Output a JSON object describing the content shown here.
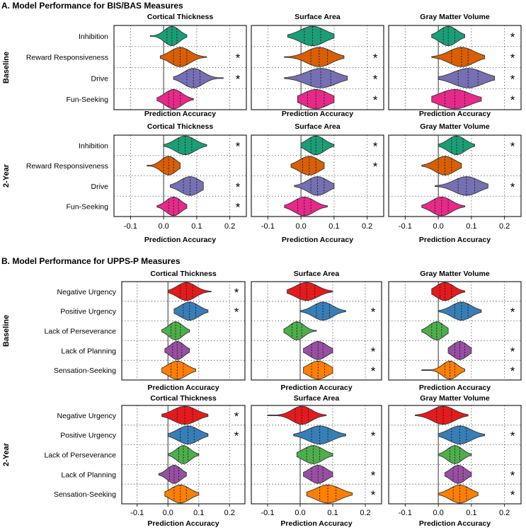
{
  "figure": {
    "section_a_title": "A. Model Performance for BIS/BAS Measures",
    "section_b_title": "B. Model Performance for UPPS-P Measures",
    "panel_titles": [
      "Cortical Thickness",
      "Surface Area",
      "Gray Matter Volume"
    ],
    "row_group_labels": [
      "Baseline",
      "2-Year"
    ],
    "x_axis_label": "Prediction Accuracy",
    "x_ticks": [
      "-0.1",
      "0.0",
      "0.1",
      "0.2"
    ],
    "significance_marker": "*",
    "bisbas_measures": [
      "Inhibition",
      "Reward Responsiveness",
      "Drive",
      "Fun-Seeking"
    ],
    "uppsp_measures": [
      "Negative Urgency",
      "Positive Urgency",
      "Lack of Perseverance",
      "Lack of Planning",
      "Sensation-Seeking"
    ]
  },
  "colors": {
    "Inhibition": "#1b9e77",
    "Reward Responsiveness": "#d95f02",
    "Drive": "#7570b3",
    "Fun-Seeking": "#e7298a",
    "Negative Urgency": "#e41a1c",
    "Positive Urgency": "#377eb8",
    "Lack of Perseverance": "#4daf4a",
    "Lack of Planning": "#984ea3",
    "Sensation-Seeking": "#ff7f00"
  },
  "chart_data": [
    {
      "type": "violin",
      "section": "A",
      "timepoint": "Baseline",
      "modality": "Cortical Thickness",
      "xlim": [
        -0.15,
        0.25
      ],
      "measures": [
        "Inhibition",
        "Reward Responsiveness",
        "Drive",
        "Fun-Seeking"
      ],
      "ranges": [
        [
          -0.04,
          0.07
        ],
        [
          -0.01,
          0.13
        ],
        [
          0.03,
          0.18
        ],
        [
          -0.02,
          0.09
        ]
      ],
      "quartiles": [
        [
          0.01,
          0.025,
          0.04
        ],
        [
          0.03,
          0.05,
          0.07
        ],
        [
          0.07,
          0.09,
          0.11
        ],
        [
          0.015,
          0.03,
          0.05
        ]
      ],
      "significant": [
        false,
        true,
        true,
        false
      ]
    },
    {
      "type": "violin",
      "section": "A",
      "timepoint": "Baseline",
      "modality": "Surface Area",
      "xlim": [
        -0.15,
        0.25
      ],
      "measures": [
        "Inhibition",
        "Reward Responsiveness",
        "Drive",
        "Fun-Seeking"
      ],
      "ranges": [
        [
          -0.04,
          0.1
        ],
        [
          -0.05,
          0.13
        ],
        [
          -0.05,
          0.14
        ],
        [
          -0.01,
          0.1
        ]
      ],
      "quartiles": [
        [
          0.01,
          0.035,
          0.06
        ],
        [
          0.03,
          0.055,
          0.08
        ],
        [
          0.03,
          0.06,
          0.09
        ],
        [
          0.02,
          0.045,
          0.07
        ]
      ],
      "significant": [
        false,
        true,
        true,
        true
      ]
    },
    {
      "type": "violin",
      "section": "A",
      "timepoint": "Baseline",
      "modality": "Gray Matter Volume",
      "xlim": [
        -0.15,
        0.25
      ],
      "measures": [
        "Inhibition",
        "Reward Responsiveness",
        "Drive",
        "Fun-Seeking"
      ],
      "ranges": [
        [
          -0.02,
          0.08
        ],
        [
          -0.02,
          0.14
        ],
        [
          0.0,
          0.17
        ],
        [
          -0.02,
          0.13
        ]
      ],
      "quartiles": [
        [
          0.015,
          0.03,
          0.05
        ],
        [
          0.04,
          0.07,
          0.09
        ],
        [
          0.06,
          0.09,
          0.12
        ],
        [
          0.02,
          0.05,
          0.08
        ]
      ],
      "significant": [
        true,
        true,
        true,
        true
      ]
    },
    {
      "type": "violin",
      "section": "A",
      "timepoint": "2-Year",
      "modality": "Cortical Thickness",
      "xlim": [
        -0.15,
        0.25
      ],
      "measures": [
        "Inhibition",
        "Reward Responsiveness",
        "Drive",
        "Fun-Seeking"
      ],
      "ranges": [
        [
          0.0,
          0.13
        ],
        [
          -0.05,
          0.05
        ],
        [
          0.02,
          0.12
        ],
        [
          -0.02,
          0.07
        ]
      ],
      "quartiles": [
        [
          0.045,
          0.065,
          0.085
        ],
        [
          0.0,
          0.015,
          0.03
        ],
        [
          0.06,
          0.08,
          0.1
        ],
        [
          0.015,
          0.03,
          0.045
        ]
      ],
      "significant": [
        true,
        false,
        true,
        true
      ]
    },
    {
      "type": "violin",
      "section": "A",
      "timepoint": "2-Year",
      "modality": "Surface Area",
      "xlim": [
        -0.15,
        0.25
      ],
      "measures": [
        "Inhibition",
        "Reward Responsiveness",
        "Drive",
        "Fun-Seeking"
      ],
      "ranges": [
        [
          0.0,
          0.1
        ],
        [
          -0.03,
          0.07
        ],
        [
          -0.02,
          0.1
        ],
        [
          -0.05,
          0.08
        ]
      ],
      "quartiles": [
        [
          0.03,
          0.045,
          0.065
        ],
        [
          0.005,
          0.025,
          0.045
        ],
        [
          0.03,
          0.05,
          0.07
        ],
        [
          -0.01,
          0.01,
          0.03
        ]
      ],
      "significant": [
        true,
        true,
        false,
        false
      ]
    },
    {
      "type": "violin",
      "section": "A",
      "timepoint": "2-Year",
      "modality": "Gray Matter Volume",
      "xlim": [
        -0.15,
        0.25
      ],
      "measures": [
        "Inhibition",
        "Reward Responsiveness",
        "Drive",
        "Fun-Seeking"
      ],
      "ranges": [
        [
          0.0,
          0.11
        ],
        [
          -0.05,
          0.07
        ],
        [
          -0.01,
          0.15
        ],
        [
          -0.05,
          0.08
        ]
      ],
      "quartiles": [
        [
          0.04,
          0.055,
          0.075
        ],
        [
          0.0,
          0.02,
          0.04
        ],
        [
          0.06,
          0.085,
          0.11
        ],
        [
          -0.01,
          0.01,
          0.03
        ]
      ],
      "significant": [
        true,
        false,
        true,
        false
      ]
    },
    {
      "type": "violin",
      "section": "B",
      "timepoint": "Baseline",
      "modality": "Cortical Thickness",
      "xlim": [
        -0.15,
        0.25
      ],
      "measures": [
        "Negative Urgency",
        "Positive Urgency",
        "Lack of Perseverance",
        "Lack of Planning",
        "Sensation-Seeking"
      ],
      "ranges": [
        [
          0.0,
          0.14
        ],
        [
          0.02,
          0.13
        ],
        [
          -0.02,
          0.07
        ],
        [
          -0.01,
          0.07
        ],
        [
          -0.02,
          0.09
        ]
      ],
      "quartiles": [
        [
          0.04,
          0.06,
          0.08
        ],
        [
          0.05,
          0.07,
          0.09
        ],
        [
          0.01,
          0.025,
          0.04
        ],
        [
          0.015,
          0.03,
          0.045
        ],
        [
          0.01,
          0.03,
          0.05
        ]
      ],
      "significant": [
        true,
        true,
        false,
        false,
        false
      ]
    },
    {
      "type": "violin",
      "section": "B",
      "timepoint": "Baseline",
      "modality": "Surface Area",
      "xlim": [
        -0.15,
        0.25
      ],
      "measures": [
        "Negative Urgency",
        "Positive Urgency",
        "Lack of Perseverance",
        "Lack of Planning",
        "Sensation-Seeking"
      ],
      "ranges": [
        [
          -0.04,
          0.1
        ],
        [
          0.0,
          0.14
        ],
        [
          -0.05,
          0.05
        ],
        [
          0.01,
          0.1
        ],
        [
          0.01,
          0.1
        ]
      ],
      "quartiles": [
        [
          0.0,
          0.02,
          0.045
        ],
        [
          0.05,
          0.07,
          0.09
        ],
        [
          -0.025,
          -0.01,
          0.005
        ],
        [
          0.035,
          0.055,
          0.07
        ],
        [
          0.035,
          0.055,
          0.075
        ]
      ],
      "significant": [
        false,
        true,
        false,
        true,
        true
      ]
    },
    {
      "type": "violin",
      "section": "B",
      "timepoint": "Baseline",
      "modality": "Gray Matter Volume",
      "xlim": [
        -0.15,
        0.25
      ],
      "measures": [
        "Negative Urgency",
        "Positive Urgency",
        "Lack of Perseverance",
        "Lack of Planning",
        "Sensation-Seeking"
      ],
      "ranges": [
        [
          -0.02,
          0.08
        ],
        [
          0.0,
          0.13
        ],
        [
          -0.05,
          0.03
        ],
        [
          0.03,
          0.1
        ],
        [
          -0.05,
          0.08
        ]
      ],
      "quartiles": [
        [
          0.005,
          0.02,
          0.04
        ],
        [
          0.05,
          0.07,
          0.09
        ],
        [
          -0.02,
          -0.005,
          0.01
        ],
        [
          0.05,
          0.065,
          0.08
        ],
        [
          0.02,
          0.035,
          0.05
        ]
      ],
      "significant": [
        false,
        true,
        false,
        true,
        true
      ]
    },
    {
      "type": "violin",
      "section": "B",
      "timepoint": "2-Year",
      "modality": "Cortical Thickness",
      "xlim": [
        -0.15,
        0.25
      ],
      "measures": [
        "Negative Urgency",
        "Positive Urgency",
        "Lack of Perseverance",
        "Lack of Planning",
        "Sensation-Seeking"
      ],
      "ranges": [
        [
          -0.02,
          0.13
        ],
        [
          0.0,
          0.13
        ],
        [
          0.0,
          0.1
        ],
        [
          -0.03,
          0.06
        ],
        [
          -0.01,
          0.1
        ]
      ],
      "quartiles": [
        [
          0.03,
          0.055,
          0.08
        ],
        [
          0.04,
          0.065,
          0.085
        ],
        [
          0.035,
          0.05,
          0.065
        ],
        [
          0.005,
          0.02,
          0.035
        ],
        [
          0.02,
          0.04,
          0.06
        ]
      ],
      "significant": [
        true,
        true,
        false,
        false,
        false
      ]
    },
    {
      "type": "violin",
      "section": "B",
      "timepoint": "2-Year",
      "modality": "Surface Area",
      "xlim": [
        -0.15,
        0.25
      ],
      "measures": [
        "Negative Urgency",
        "Positive Urgency",
        "Lack of Perseverance",
        "Lack of Planning",
        "Sensation-Seeking"
      ],
      "ranges": [
        [
          -0.1,
          0.08
        ],
        [
          -0.02,
          0.14
        ],
        [
          -0.01,
          0.1
        ],
        [
          0.01,
          0.1
        ],
        [
          0.02,
          0.16
        ]
      ],
      "quartiles": [
        [
          -0.015,
          0.005,
          0.025
        ],
        [
          0.035,
          0.06,
          0.085
        ],
        [
          0.02,
          0.04,
          0.06
        ],
        [
          0.035,
          0.055,
          0.07
        ],
        [
          0.06,
          0.085,
          0.11
        ]
      ],
      "significant": [
        false,
        true,
        false,
        true,
        true
      ]
    },
    {
      "type": "violin",
      "section": "B",
      "timepoint": "2-Year",
      "modality": "Gray Matter Volume",
      "xlim": [
        -0.15,
        0.25
      ],
      "measures": [
        "Negative Urgency",
        "Positive Urgency",
        "Lack of Perseverance",
        "Lack of Planning",
        "Sensation-Seeking"
      ],
      "ranges": [
        [
          -0.07,
          0.09
        ],
        [
          0.0,
          0.14
        ],
        [
          0.0,
          0.1
        ],
        [
          0.02,
          0.1
        ],
        [
          0.0,
          0.12
        ]
      ],
      "quartiles": [
        [
          -0.005,
          0.015,
          0.04
        ],
        [
          0.04,
          0.065,
          0.085
        ],
        [
          0.035,
          0.05,
          0.065
        ],
        [
          0.045,
          0.06,
          0.075
        ],
        [
          0.045,
          0.065,
          0.085
        ]
      ],
      "significant": [
        false,
        true,
        false,
        true,
        true
      ]
    }
  ]
}
